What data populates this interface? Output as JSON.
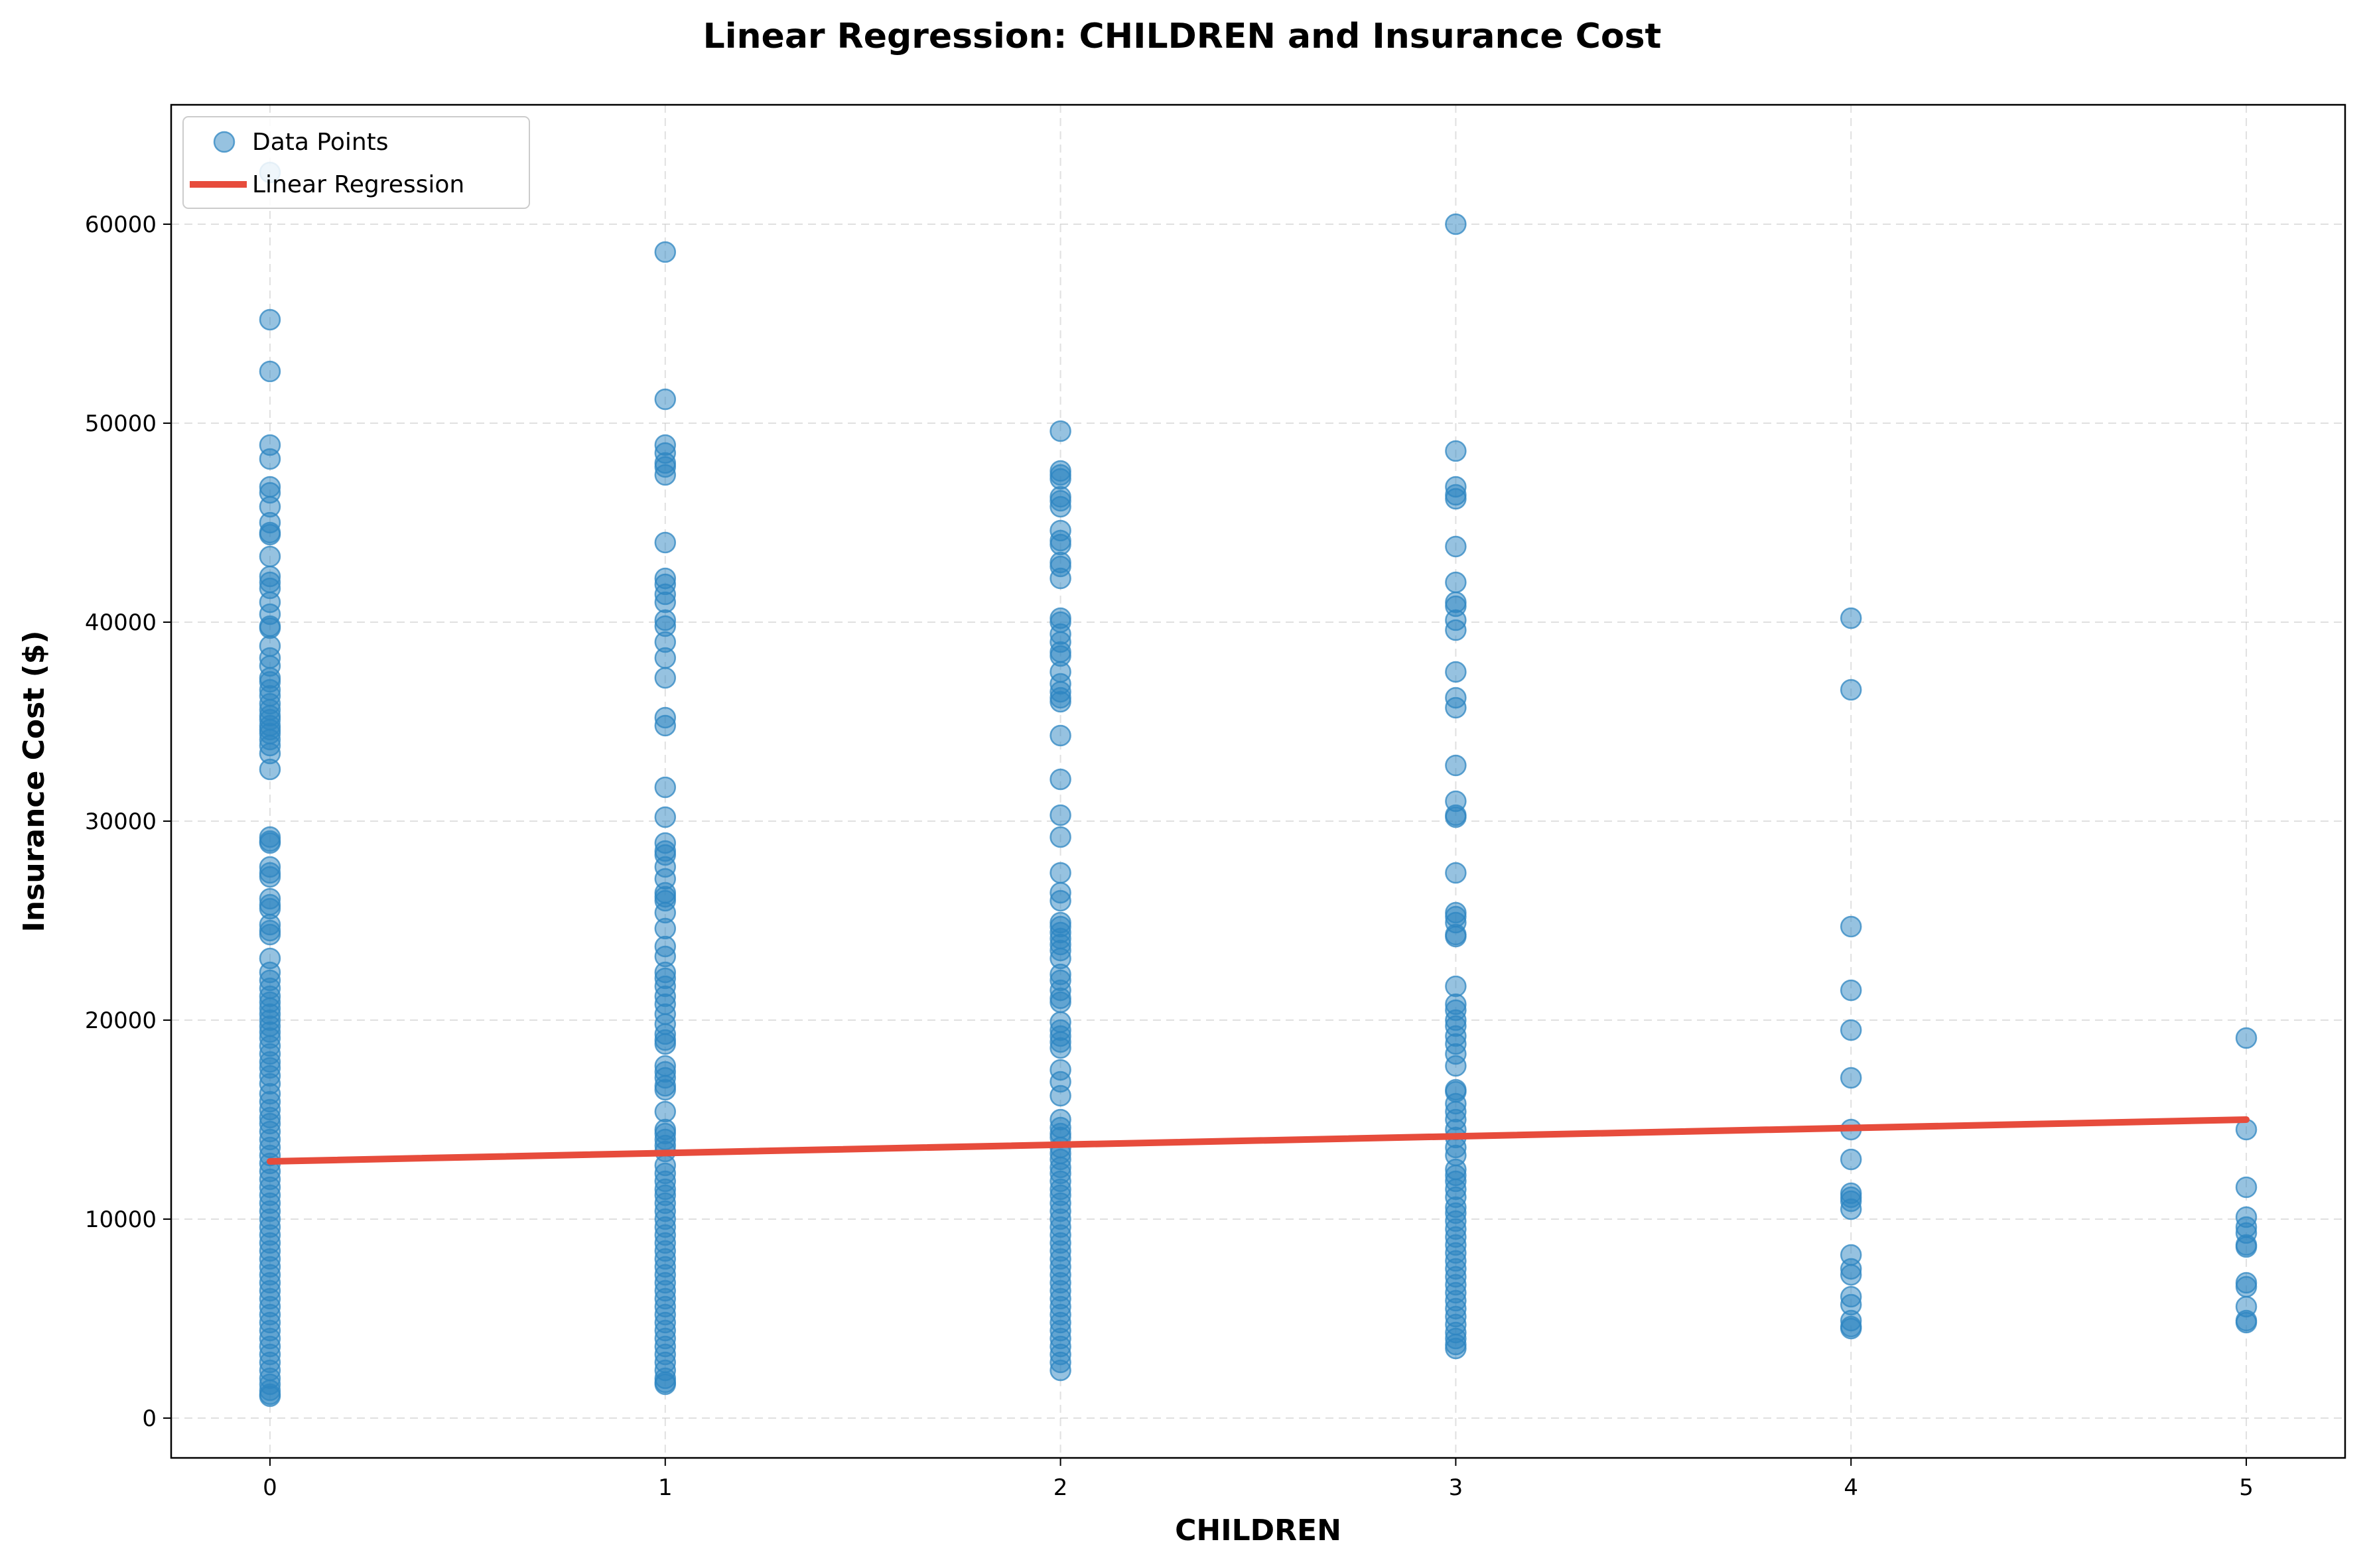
{
  "chart_data": {
    "type": "scatter",
    "title": "Linear Regression: CHILDREN and Insurance Cost",
    "xlabel": "CHILDREN",
    "ylabel": "Insurance Cost ($)",
    "xlim": [
      -0.25,
      5.25
    ],
    "ylim": [
      -2000,
      66000
    ],
    "xticks": [
      0,
      1,
      2,
      3,
      4,
      5
    ],
    "yticks": [
      0,
      10000,
      20000,
      30000,
      40000,
      50000,
      60000
    ],
    "grid": true,
    "legend_position": "top-left",
    "colors": {
      "points": "#2e86c1",
      "regression": "#e74c3c"
    },
    "series": [
      {
        "name": "Data Points",
        "kind": "scatter",
        "groups": [
          {
            "x": 0,
            "y": [
              62600,
              55200,
              52600,
              48900,
              48200,
              46800,
              46500,
              45800,
              45000,
              44500,
              44400,
              43300,
              42300,
              42000,
              41700,
              41000,
              40400,
              39800,
              39700,
              38800,
              38200,
              37800,
              37200,
              37000,
              36600,
              36300,
              35900,
              35600,
              35300,
              35100,
              34800,
              34600,
              34400,
              34100,
              33800,
              33400,
              32600,
              29200,
              29000,
              28900,
              27700,
              27400,
              27200,
              26100,
              25800,
              25600,
              24800,
              24500,
              24300,
              23100,
              22400,
              22000,
              21600,
              21200,
              20900,
              20600,
              20300,
              20000,
              19700,
              19400,
              19100,
              18700,
              18300,
              17900,
              17600,
              17200,
              16800,
              16300,
              15900,
              15500,
              15100,
              14800,
              14400,
              14000,
              13600,
              13200,
              12800,
              12400,
              12000,
              11600,
              11200,
              10800,
              10400,
              10000,
              9600,
              9200,
              8800,
              8400,
              8000,
              7600,
              7200,
              6800,
              6400,
              6000,
              5600,
              5200,
              4800,
              4400,
              4000,
              3600,
              3200,
              2800,
              2400,
              2000,
              1700,
              1400,
              1200,
              1100
            ]
          },
          {
            "x": 1,
            "y": [
              58600,
              51200,
              48900,
              48500,
              48000,
              47800,
              47400,
              44000,
              42200,
              41900,
              41400,
              41000,
              40100,
              39800,
              39000,
              38200,
              37200,
              35200,
              34800,
              31700,
              30200,
              28900,
              28500,
              28300,
              27700,
              27100,
              26400,
              26200,
              26000,
              25400,
              24600,
              23700,
              23200,
              22400,
              22100,
              21700,
              21200,
              20800,
              20300,
              19800,
              19300,
              19000,
              18800,
              17700,
              17400,
              17100,
              16700,
              16500,
              15400,
              14500,
              14300,
              14000,
              13700,
              13400,
              12700,
              12300,
              11900,
              11500,
              11200,
              10800,
              10400,
              10000,
              9600,
              9200,
              8800,
              8400,
              8000,
              7600,
              7200,
              6800,
              6400,
              6000,
              5600,
              5200,
              4800,
              4400,
              4000,
              3600,
              3200,
              2800,
              2400,
              2000,
              1800,
              1700
            ]
          },
          {
            "x": 2,
            "y": [
              49600,
              47600,
              47400,
              47200,
              46300,
              46100,
              45800,
              44600,
              44100,
              43900,
              43000,
              42800,
              42200,
              40200,
              40000,
              39400,
              39000,
              38500,
              38300,
              37500,
              36900,
              36500,
              36200,
              36000,
              34300,
              32100,
              30300,
              29200,
              27400,
              26400,
              26000,
              24900,
              24700,
              24400,
              24100,
              23800,
              23500,
              23100,
              22300,
              22000,
              21500,
              21100,
              20900,
              19900,
              19500,
              19200,
              18900,
              18600,
              17500,
              16900,
              16200,
              15000,
              14600,
              14300,
              14100,
              13600,
              13300,
              13000,
              12600,
              12300,
              11900,
              11500,
              11200,
              10800,
              10400,
              10000,
              9600,
              9200,
              8800,
              8400,
              8000,
              7600,
              7200,
              6800,
              6400,
              6000,
              5600,
              5200,
              4800,
              4400,
              4000,
              3600,
              3200,
              2800,
              2400
            ]
          },
          {
            "x": 3,
            "y": [
              60000,
              48600,
              46800,
              46400,
              46200,
              43800,
              42000,
              41000,
              40800,
              40100,
              39600,
              37500,
              36200,
              35700,
              32800,
              31000,
              30300,
              30200,
              27400,
              25400,
              25200,
              24900,
              24300,
              24200,
              21700,
              20800,
              20500,
              20000,
              19700,
              19200,
              18800,
              18300,
              17700,
              16500,
              16400,
              15800,
              15400,
              15000,
              14500,
              14100,
              13600,
              13200,
              12500,
              12200,
              11900,
              11500,
              11100,
              10600,
              10300,
              9900,
              9500,
              9100,
              8700,
              8300,
              7900,
              7500,
              7100,
              6700,
              6300,
              5900,
              5500,
              5100,
              4700,
              4300,
              4000,
              3700,
              3500
            ]
          },
          {
            "x": 4,
            "y": [
              40200,
              36600,
              24700,
              21500,
              19500,
              17100,
              14500,
              13000,
              11300,
              11100,
              10900,
              10500,
              8200,
              7500,
              7200,
              6100,
              5700,
              4900,
              4600,
              4500
            ]
          },
          {
            "x": 5,
            "y": [
              19100,
              14500,
              11600,
              10100,
              9600,
              9300,
              8700,
              8600,
              6800,
              6600,
              5600,
              4900,
              4800
            ]
          }
        ]
      },
      {
        "name": "Linear Regression",
        "kind": "line",
        "x": [
          0,
          5
        ],
        "y": [
          12900,
          15000
        ]
      }
    ]
  }
}
